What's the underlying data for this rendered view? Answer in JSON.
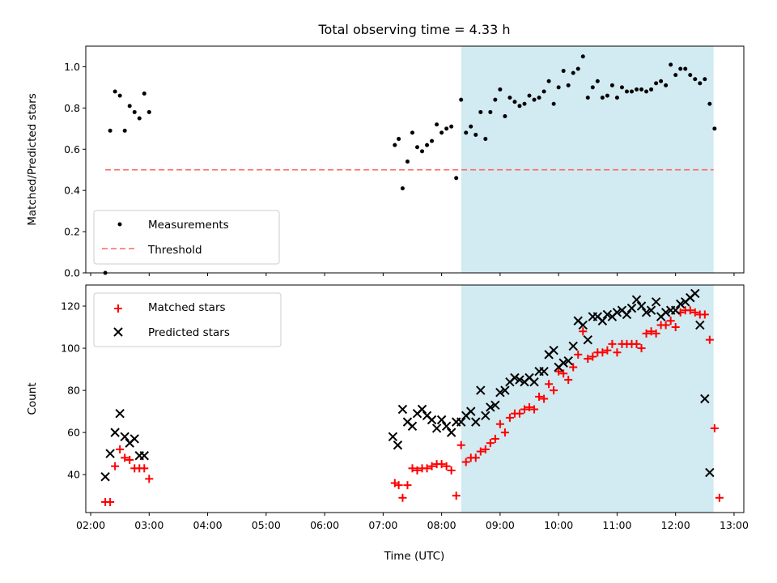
{
  "chart_data": {
    "type": "scatter",
    "title": "Total observing time = 4.33 h",
    "xlabel": "Time (UTC)",
    "x_ticks": [
      "02:00",
      "03:00",
      "04:00",
      "05:00",
      "06:00",
      "07:00",
      "08:00",
      "09:00",
      "10:00",
      "11:00",
      "12:00",
      "13:00"
    ],
    "xlim": [
      "01:55",
      "13:10"
    ],
    "highlight": {
      "x_start": "08:20",
      "x_end": "12:39",
      "color": "#add8e6"
    },
    "panels": [
      {
        "ylabel": "Matched/Predicted stars",
        "ylim": [
          0,
          1.1
        ],
        "y_ticks": [
          "0.0",
          "0.2",
          "0.4",
          "0.6",
          "0.8",
          "1.0"
        ],
        "legend_position": "lower-left",
        "threshold": {
          "name": "Threshold",
          "y": 0.5,
          "x_start": "02:15",
          "x_end": "12:39",
          "color": "#ff6666"
        },
        "series": [
          {
            "name": "Measurements",
            "marker": "dot",
            "color": "#000000",
            "points": [
              [
                "02:15",
                0.0
              ],
              [
                "02:20",
                0.69
              ],
              [
                "02:25",
                0.88
              ],
              [
                "02:30",
                0.86
              ],
              [
                "02:35",
                0.69
              ],
              [
                "02:40",
                0.81
              ],
              [
                "02:45",
                0.78
              ],
              [
                "02:50",
                0.75
              ],
              [
                "02:55",
                0.87
              ],
              [
                "03:00",
                0.78
              ],
              [
                "07:12",
                0.62
              ],
              [
                "07:16",
                0.65
              ],
              [
                "07:20",
                0.41
              ],
              [
                "07:25",
                0.54
              ],
              [
                "07:30",
                0.68
              ],
              [
                "07:35",
                0.61
              ],
              [
                "07:40",
                0.59
              ],
              [
                "07:45",
                0.62
              ],
              [
                "07:50",
                0.64
              ],
              [
                "07:55",
                0.72
              ],
              [
                "08:00",
                0.68
              ],
              [
                "08:05",
                0.7
              ],
              [
                "08:10",
                0.71
              ],
              [
                "08:15",
                0.46
              ],
              [
                "08:20",
                0.84
              ],
              [
                "08:25",
                0.68
              ],
              [
                "08:30",
                0.71
              ],
              [
                "08:35",
                0.67
              ],
              [
                "08:40",
                0.78
              ],
              [
                "08:45",
                0.65
              ],
              [
                "08:50",
                0.78
              ],
              [
                "08:55",
                0.84
              ],
              [
                "09:00",
                0.89
              ],
              [
                "09:05",
                0.76
              ],
              [
                "09:10",
                0.85
              ],
              [
                "09:15",
                0.83
              ],
              [
                "09:20",
                0.81
              ],
              [
                "09:25",
                0.82
              ],
              [
                "09:30",
                0.86
              ],
              [
                "09:35",
                0.84
              ],
              [
                "09:40",
                0.85
              ],
              [
                "09:45",
                0.88
              ],
              [
                "09:50",
                0.93
              ],
              [
                "09:55",
                0.82
              ],
              [
                "10:00",
                0.9
              ],
              [
                "10:05",
                0.98
              ],
              [
                "10:10",
                0.91
              ],
              [
                "10:15",
                0.97
              ],
              [
                "10:20",
                0.99
              ],
              [
                "10:25",
                1.05
              ],
              [
                "10:30",
                0.85
              ],
              [
                "10:35",
                0.9
              ],
              [
                "10:40",
                0.93
              ],
              [
                "10:45",
                0.85
              ],
              [
                "10:50",
                0.86
              ],
              [
                "10:55",
                0.91
              ],
              [
                "11:00",
                0.85
              ],
              [
                "11:05",
                0.9
              ],
              [
                "11:10",
                0.88
              ],
              [
                "11:15",
                0.88
              ],
              [
                "11:20",
                0.89
              ],
              [
                "11:25",
                0.89
              ],
              [
                "11:30",
                0.88
              ],
              [
                "11:35",
                0.89
              ],
              [
                "11:40",
                0.92
              ],
              [
                "11:45",
                0.93
              ],
              [
                "11:50",
                0.91
              ],
              [
                "11:55",
                1.01
              ],
              [
                "12:00",
                0.96
              ],
              [
                "12:05",
                0.99
              ],
              [
                "12:10",
                0.99
              ],
              [
                "12:15",
                0.96
              ],
              [
                "12:20",
                0.94
              ],
              [
                "12:25",
                0.92
              ],
              [
                "12:30",
                0.94
              ],
              [
                "12:35",
                0.82
              ],
              [
                "12:40",
                0.7
              ]
            ]
          }
        ]
      },
      {
        "ylabel": "Count",
        "ylim": [
          22,
          130
        ],
        "y_ticks": [
          "40",
          "60",
          "80",
          "100",
          "120"
        ],
        "legend_position": "upper-left",
        "series": [
          {
            "name": "Matched stars",
            "marker": "plus",
            "color": "#ff0000",
            "points": [
              [
                "02:15",
                27
              ],
              [
                "02:20",
                27
              ],
              [
                "02:25",
                44
              ],
              [
                "02:30",
                52
              ],
              [
                "02:35",
                48
              ],
              [
                "02:40",
                47
              ],
              [
                "02:45",
                43
              ],
              [
                "02:50",
                43
              ],
              [
                "02:55",
                43
              ],
              [
                "03:00",
                38
              ],
              [
                "07:12",
                36
              ],
              [
                "07:16",
                35
              ],
              [
                "07:20",
                29
              ],
              [
                "07:25",
                35
              ],
              [
                "07:30",
                43
              ],
              [
                "07:35",
                42
              ],
              [
                "07:40",
                43
              ],
              [
                "07:45",
                43
              ],
              [
                "07:50",
                44
              ],
              [
                "07:55",
                45
              ],
              [
                "08:00",
                45
              ],
              [
                "08:05",
                44
              ],
              [
                "08:10",
                42
              ],
              [
                "08:15",
                30
              ],
              [
                "08:20",
                54
              ],
              [
                "08:25",
                46
              ],
              [
                "08:30",
                48
              ],
              [
                "08:35",
                48
              ],
              [
                "08:40",
                51
              ],
              [
                "08:45",
                52
              ],
              [
                "08:50",
                55
              ],
              [
                "08:55",
                57
              ],
              [
                "09:00",
                64
              ],
              [
                "09:05",
                60
              ],
              [
                "09:10",
                67
              ],
              [
                "09:15",
                69
              ],
              [
                "09:20",
                69
              ],
              [
                "09:25",
                71
              ],
              [
                "09:30",
                72
              ],
              [
                "09:35",
                71
              ],
              [
                "09:40",
                77
              ],
              [
                "09:45",
                76
              ],
              [
                "09:50",
                83
              ],
              [
                "09:55",
                80
              ],
              [
                "10:00",
                89
              ],
              [
                "10:05",
                88
              ],
              [
                "10:10",
                85
              ],
              [
                "10:15",
                91
              ],
              [
                "10:20",
                97
              ],
              [
                "10:25",
                108
              ],
              [
                "10:30",
                95
              ],
              [
                "10:35",
                96
              ],
              [
                "10:40",
                98
              ],
              [
                "10:45",
                98
              ],
              [
                "10:50",
                99
              ],
              [
                "10:55",
                102
              ],
              [
                "11:00",
                98
              ],
              [
                "11:05",
                102
              ],
              [
                "11:10",
                102
              ],
              [
                "11:15",
                102
              ],
              [
                "11:20",
                102
              ],
              [
                "11:25",
                100
              ],
              [
                "11:30",
                107
              ],
              [
                "11:35",
                108
              ],
              [
                "11:40",
                107
              ],
              [
                "11:45",
                111
              ],
              [
                "11:50",
                111
              ],
              [
                "11:55",
                113
              ],
              [
                "12:00",
                110
              ],
              [
                "12:05",
                117
              ],
              [
                "12:10",
                118
              ],
              [
                "12:15",
                118
              ],
              [
                "12:20",
                117
              ],
              [
                "12:25",
                116
              ],
              [
                "12:30",
                116
              ],
              [
                "12:35",
                104
              ],
              [
                "12:40",
                62
              ],
              [
                "12:45",
                29
              ]
            ]
          },
          {
            "name": "Predicted stars",
            "marker": "x",
            "color": "#000000",
            "points": [
              [
                "02:15",
                39
              ],
              [
                "02:20",
                50
              ],
              [
                "02:25",
                60
              ],
              [
                "02:30",
                69
              ],
              [
                "02:35",
                58
              ],
              [
                "02:40",
                55
              ],
              [
                "02:45",
                57
              ],
              [
                "02:50",
                49
              ],
              [
                "02:55",
                49
              ],
              [
                "07:10",
                58
              ],
              [
                "07:15",
                54
              ],
              [
                "07:20",
                71
              ],
              [
                "07:25",
                65
              ],
              [
                "07:30",
                63
              ],
              [
                "07:35",
                69
              ],
              [
                "07:40",
                71
              ],
              [
                "07:45",
                68
              ],
              [
                "07:50",
                66
              ],
              [
                "07:55",
                62
              ],
              [
                "08:00",
                66
              ],
              [
                "08:05",
                63
              ],
              [
                "08:10",
                60
              ],
              [
                "08:15",
                65
              ],
              [
                "08:20",
                65
              ],
              [
                "08:25",
                68
              ],
              [
                "08:30",
                70
              ],
              [
                "08:35",
                65
              ],
              [
                "08:40",
                80
              ],
              [
                "08:45",
                68
              ],
              [
                "08:50",
                72
              ],
              [
                "08:55",
                73
              ],
              [
                "09:00",
                79
              ],
              [
                "09:05",
                80
              ],
              [
                "09:10",
                84
              ],
              [
                "09:15",
                86
              ],
              [
                "09:20",
                85
              ],
              [
                "09:25",
                84
              ],
              [
                "09:30",
                86
              ],
              [
                "09:35",
                84
              ],
              [
                "09:40",
                89
              ],
              [
                "09:45",
                89
              ],
              [
                "09:50",
                97
              ],
              [
                "09:55",
                99
              ],
              [
                "10:00",
                91
              ],
              [
                "10:05",
                93
              ],
              [
                "10:10",
                94
              ],
              [
                "10:15",
                101
              ],
              [
                "10:20",
                113
              ],
              [
                "10:25",
                111
              ],
              [
                "10:30",
                104
              ],
              [
                "10:35",
                115
              ],
              [
                "10:40",
                115
              ],
              [
                "10:45",
                113
              ],
              [
                "10:50",
                116
              ],
              [
                "10:55",
                115
              ],
              [
                "11:00",
                117
              ],
              [
                "11:05",
                118
              ],
              [
                "11:10",
                116
              ],
              [
                "11:15",
                119
              ],
              [
                "11:20",
                123
              ],
              [
                "11:25",
                120
              ],
              [
                "11:30",
                117
              ],
              [
                "11:35",
                118
              ],
              [
                "11:40",
                122
              ],
              [
                "11:45",
                115
              ],
              [
                "11:50",
                117
              ],
              [
                "11:55",
                118
              ],
              [
                "12:00",
                118
              ],
              [
                "12:05",
                121
              ],
              [
                "12:10",
                122
              ],
              [
                "12:15",
                124
              ],
              [
                "12:20",
                126
              ],
              [
                "12:25",
                111
              ],
              [
                "12:30",
                76
              ],
              [
                "12:35",
                41
              ]
            ]
          }
        ]
      }
    ]
  }
}
